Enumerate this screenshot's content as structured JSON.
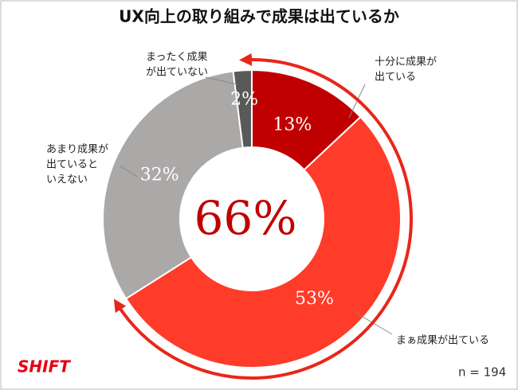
{
  "chart_data": {
    "type": "donut",
    "title": "UX向上の取り組みで成果は出ているか",
    "categories": [
      [
        "十分に成果が",
        "出ている"
      ],
      [
        "まぁ成果が出ている"
      ],
      [
        "あまり成果が",
        "出ていると",
        "いえない"
      ],
      [
        "まったく成果",
        "が出ていない"
      ]
    ],
    "values": [
      13,
      53,
      32,
      2
    ],
    "value_labels": [
      "13%",
      "53%",
      "32%",
      "2%"
    ],
    "colors": [
      "#c00000",
      "#ff3b2a",
      "#aba8a8",
      "#595959"
    ],
    "annotation": "66%",
    "note": "n = 194",
    "logo": "SHIFT"
  }
}
